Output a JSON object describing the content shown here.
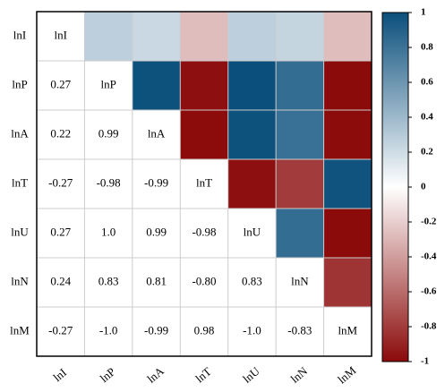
{
  "chart_data": {
    "type": "corrplot",
    "variables": [
      "lnI",
      "lnP",
      "lnA",
      "lnT",
      "lnU",
      "lnN",
      "lnM"
    ],
    "values": [
      [],
      [
        0.27
      ],
      [
        0.22,
        0.99
      ],
      [
        -0.27,
        -0.98,
        -0.99
      ],
      [
        0.27,
        1.0,
        0.99,
        -0.98
      ],
      [
        0.24,
        0.83,
        0.81,
        -0.8,
        0.83
      ],
      [
        -0.27,
        -1.0,
        -0.99,
        0.98,
        -1.0,
        -0.83
      ]
    ],
    "value_labels": [
      [],
      [
        "0.27"
      ],
      [
        "0.22",
        "0.99"
      ],
      [
        "-0.27",
        "-0.98",
        "-0.99"
      ],
      [
        "0.27",
        "1.0",
        "0.99",
        "-0.98"
      ],
      [
        "0.24",
        "0.83",
        "0.81",
        "-0.80",
        "0.83"
      ],
      [
        "-0.27",
        "-1.0",
        "-0.99",
        "0.98",
        "-1.0",
        "-0.83"
      ]
    ],
    "colormap": [
      "#8b0a0a",
      "#ffffff",
      "#0b4f7c"
    ],
    "clim": [
      -1,
      1
    ],
    "cticks": [
      1,
      0.8,
      0.6,
      0.4,
      0.2,
      0,
      -0.2,
      -0.4,
      -0.6,
      -0.8,
      -1
    ]
  }
}
